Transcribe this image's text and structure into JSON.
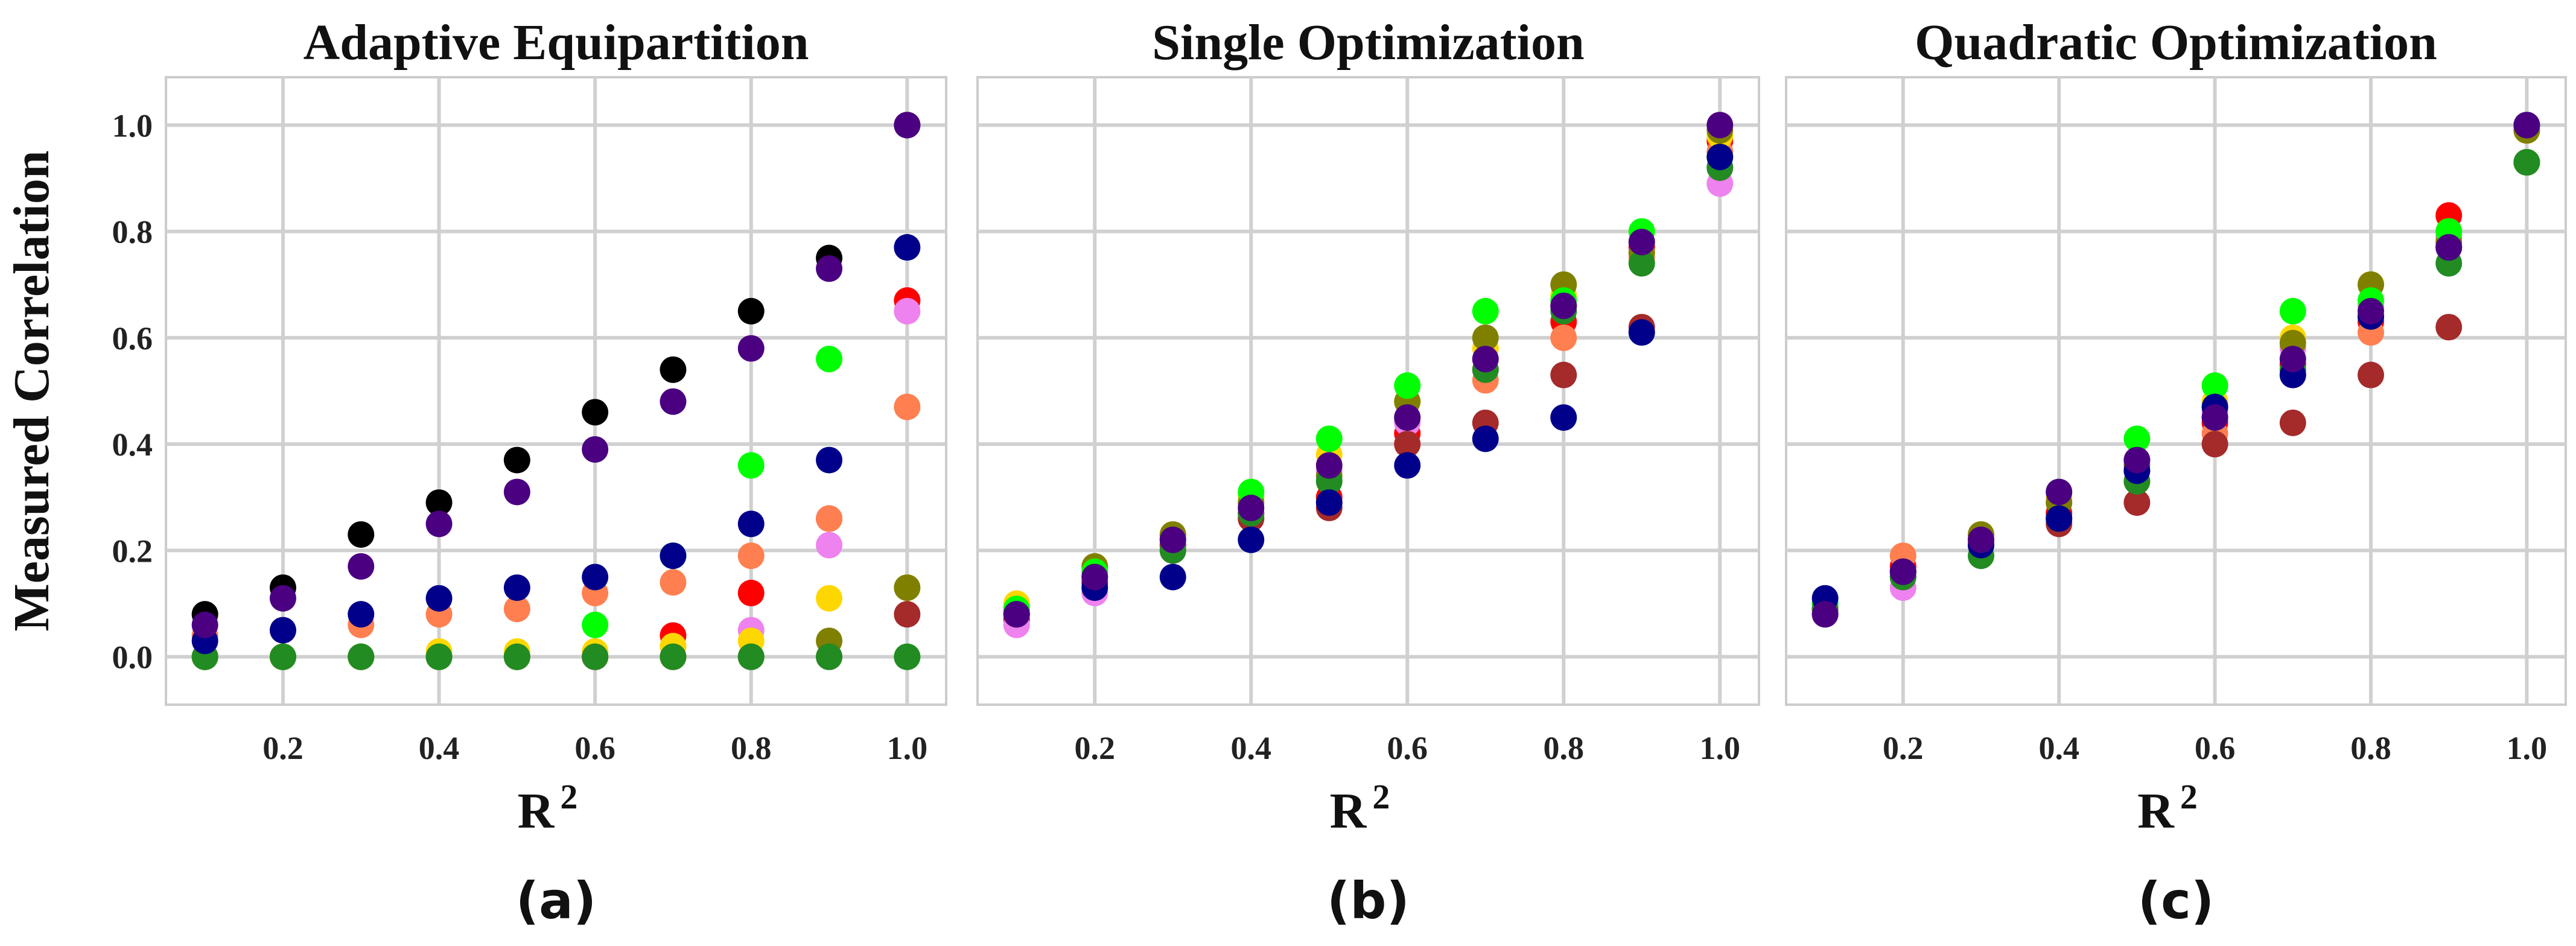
{
  "figure": {
    "captions": [
      "(a)",
      "(b)",
      "(c)"
    ]
  },
  "chart_data": [
    {
      "type": "scatter",
      "title": "Adaptive Equipartition",
      "xlabel": "R",
      "xlabel_superscript": "2",
      "ylabel": "Measured Correlation",
      "xlim": [
        0.05,
        1.05
      ],
      "ylim": [
        -0.09,
        1.09
      ],
      "xticks": [
        0.2,
        0.4,
        0.6,
        0.8,
        1.0
      ],
      "xtick_labels": [
        "0.2",
        "0.4",
        "0.6",
        "0.8",
        "1.0"
      ],
      "yticks": [
        0.0,
        0.2,
        0.4,
        0.6,
        0.8,
        1.0
      ],
      "ytick_labels": [
        "0.0",
        "0.2",
        "0.4",
        "0.6",
        "0.8",
        "1.0"
      ],
      "grid": true,
      "series": [
        {
          "color": "#ff0000",
          "x": [
            0.1,
            0.2,
            0.3,
            0.4,
            0.5,
            0.6,
            0.7,
            0.8,
            0.9,
            1.0
          ],
          "y": [
            0,
            0,
            0,
            0,
            0,
            0,
            0.04,
            0.12,
            0.26,
            0.67
          ]
        },
        {
          "color": "#ff7f50",
          "x": [
            0.1,
            0.2,
            0.3,
            0.4,
            0.5,
            0.6,
            0.7,
            0.8,
            0.9,
            1.0
          ],
          "y": [
            0.04,
            0.05,
            0.06,
            0.08,
            0.09,
            0.12,
            0.14,
            0.19,
            0.26,
            0.47
          ]
        },
        {
          "color": "#ee82ee",
          "x": [
            0.1,
            0.2,
            0.3,
            0.4,
            0.5,
            0.6,
            0.7,
            0.8,
            0.9,
            1.0
          ],
          "y": [
            0,
            0,
            0,
            0,
            0,
            0,
            0.02,
            0.05,
            0.21,
            0.65
          ]
        },
        {
          "color": "#ffd700",
          "x": [
            0.1,
            0.2,
            0.3,
            0.4,
            0.5,
            0.6,
            0.7,
            0.8,
            0.9,
            1.0
          ],
          "y": [
            0,
            0,
            0,
            0.01,
            0.01,
            0.01,
            0.02,
            0.03,
            0.11,
            0.13
          ]
        },
        {
          "color": "#808000",
          "x": [
            0.1,
            0.2,
            0.3,
            0.4,
            0.5,
            0.6,
            0.7,
            0.8,
            0.9,
            1.0
          ],
          "y": [
            0,
            0,
            0,
            0,
            0,
            0,
            0,
            0,
            0.03,
            0.13
          ]
        },
        {
          "color": "#a52a2a",
          "x": [
            0.1,
            0.2,
            0.3,
            0.4,
            0.5,
            0.6,
            0.7,
            0.8,
            0.9,
            1.0
          ],
          "y": [
            0,
            0,
            0,
            0,
            0,
            0,
            0,
            0,
            0,
            0.08
          ]
        },
        {
          "color": "#00ff00",
          "x": [
            0.1,
            0.2,
            0.3,
            0.4,
            0.5,
            0.6,
            0.7,
            0.8,
            0.9,
            1.0
          ],
          "y": [
            0,
            0,
            0,
            0,
            0,
            0.06,
            0.19,
            0.36,
            0.56,
            0
          ]
        },
        {
          "color": "#228b22",
          "x": [
            0.1,
            0.2,
            0.3,
            0.4,
            0.5,
            0.6,
            0.7,
            0.8,
            0.9,
            1.0
          ],
          "y": [
            0,
            0,
            0,
            0,
            0,
            0,
            0,
            0,
            0,
            0
          ]
        },
        {
          "color": "#000000",
          "x": [
            0.1,
            0.2,
            0.3,
            0.4,
            0.5,
            0.6,
            0.7,
            0.8,
            0.9,
            1.0
          ],
          "y": [
            0.08,
            0.13,
            0.23,
            0.29,
            0.37,
            0.46,
            0.54,
            0.65,
            0.75,
            1.0
          ]
        },
        {
          "color": "#00008b",
          "x": [
            0.1,
            0.2,
            0.3,
            0.4,
            0.5,
            0.6,
            0.7,
            0.8,
            0.9,
            1.0
          ],
          "y": [
            0.03,
            0.05,
            0.08,
            0.11,
            0.13,
            0.15,
            0.19,
            0.25,
            0.37,
            0.77
          ]
        },
        {
          "color": "#4b0082",
          "x": [
            0.1,
            0.2,
            0.3,
            0.4,
            0.5,
            0.6,
            0.7,
            0.8,
            0.9,
            1.0
          ],
          "y": [
            0.06,
            0.11,
            0.17,
            0.25,
            0.31,
            0.39,
            0.48,
            0.58,
            0.73,
            1.0
          ]
        }
      ]
    },
    {
      "type": "scatter",
      "title": "Single Optimization",
      "xlabel": "R",
      "xlabel_superscript": "2",
      "ylabel": "",
      "xlim": [
        0.05,
        1.05
      ],
      "ylim": [
        -0.09,
        1.09
      ],
      "xticks": [
        0.2,
        0.4,
        0.6,
        0.8,
        1.0
      ],
      "xtick_labels": [
        "0.2",
        "0.4",
        "0.6",
        "0.8",
        "1.0"
      ],
      "yticks": [
        0.0,
        0.2,
        0.4,
        0.6,
        0.8,
        1.0
      ],
      "ytick_labels": [],
      "grid": true,
      "series": [
        {
          "color": "#ff0000",
          "x": [
            0.1,
            0.2,
            0.3,
            0.4,
            0.5,
            0.6,
            0.7,
            0.8,
            0.9,
            1.0
          ],
          "y": [
            0.07,
            0.14,
            0.2,
            0.27,
            0.3,
            0.42,
            0.54,
            0.63,
            0.77,
            0.97
          ]
        },
        {
          "color": "#ff7f50",
          "x": [
            0.1,
            0.2,
            0.3,
            0.4,
            0.5,
            0.6,
            0.7,
            0.8,
            0.9,
            1.0
          ],
          "y": [
            0.08,
            0.15,
            0.21,
            0.26,
            0.29,
            0.4,
            0.52,
            0.6,
            0.75,
            0.95
          ]
        },
        {
          "color": "#ee82ee",
          "x": [
            0.1,
            0.2,
            0.3,
            0.4,
            0.5,
            0.6,
            0.7,
            0.8,
            0.9,
            1.0
          ],
          "y": [
            0.06,
            0.12,
            0.2,
            0.27,
            0.35,
            0.44,
            0.56,
            0.66,
            0.76,
            0.89
          ]
        },
        {
          "color": "#ffd700",
          "x": [
            0.1,
            0.2,
            0.3,
            0.4,
            0.5,
            0.6,
            0.7,
            0.8,
            0.9,
            1.0
          ],
          "y": [
            0.1,
            0.17,
            0.23,
            0.3,
            0.38,
            0.48,
            0.58,
            0.68,
            0.78,
            0.98
          ]
        },
        {
          "color": "#808000",
          "x": [
            0.1,
            0.2,
            0.3,
            0.4,
            0.5,
            0.6,
            0.7,
            0.8,
            0.9,
            1.0
          ],
          "y": [
            0.09,
            0.17,
            0.23,
            0.29,
            0.34,
            0.48,
            0.6,
            0.7,
            0.76,
            0.99
          ]
        },
        {
          "color": "#a52a2a",
          "x": [
            0.1,
            0.2,
            0.3,
            0.4,
            0.5,
            0.6,
            0.7,
            0.8,
            0.9,
            1.0
          ],
          "y": [
            0.08,
            0.14,
            0.21,
            0.26,
            0.28,
            0.4,
            0.44,
            0.53,
            0.62,
            0.92
          ]
        },
        {
          "color": "#00ff00",
          "x": [
            0.1,
            0.2,
            0.3,
            0.4,
            0.5,
            0.6,
            0.7,
            0.8,
            0.9,
            1.0
          ],
          "y": [
            0.09,
            0.16,
            0.22,
            0.31,
            0.41,
            0.51,
            0.65,
            0.67,
            0.8,
            0.94
          ]
        },
        {
          "color": "#228b22",
          "x": [
            0.1,
            0.2,
            0.3,
            0.4,
            0.5,
            0.6,
            0.7,
            0.8,
            0.9,
            1.0
          ],
          "y": [
            0.08,
            0.15,
            0.2,
            0.27,
            0.33,
            0.45,
            0.54,
            0.65,
            0.74,
            0.92
          ]
        },
        {
          "color": "#00008b",
          "x": [
            0.1,
            0.2,
            0.3,
            0.4,
            0.5,
            0.6,
            0.7,
            0.8,
            0.9,
            1.0
          ],
          "y": [
            0.08,
            0.13,
            0.15,
            0.22,
            0.29,
            0.36,
            0.41,
            0.45,
            0.61,
            0.94
          ]
        },
        {
          "color": "#4b0082",
          "x": [
            0.1,
            0.2,
            0.3,
            0.4,
            0.5,
            0.6,
            0.7,
            0.8,
            0.9,
            1.0
          ],
          "y": [
            0.08,
            0.15,
            0.22,
            0.28,
            0.36,
            0.45,
            0.56,
            0.66,
            0.78,
            1.0
          ]
        }
      ]
    },
    {
      "type": "scatter",
      "title": "Quadratic Optimization",
      "xlabel": "R",
      "xlabel_superscript": "2",
      "ylabel": "",
      "xlim": [
        0.05,
        1.05
      ],
      "ylim": [
        -0.09,
        1.09
      ],
      "xticks": [
        0.2,
        0.4,
        0.6,
        0.8,
        1.0
      ],
      "xtick_labels": [
        "0.2",
        "0.4",
        "0.6",
        "0.8",
        "1.0"
      ],
      "yticks": [
        0.0,
        0.2,
        0.4,
        0.6,
        0.8,
        1.0
      ],
      "ytick_labels": [],
      "grid": true,
      "series": [
        {
          "color": "#ff0000",
          "x": [
            0.1,
            0.2,
            0.3,
            0.4,
            0.5,
            0.6,
            0.7,
            0.8,
            0.9,
            1.0
          ],
          "y": [
            0.09,
            0.17,
            0.22,
            0.27,
            0.35,
            0.44,
            0.55,
            0.63,
            0.83,
            0.93
          ]
        },
        {
          "color": "#ff7f50",
          "x": [
            0.1,
            0.2,
            0.3,
            0.4,
            0.5,
            0.6,
            0.7,
            0.8,
            0.9,
            1.0
          ],
          "y": [
            0.09,
            0.19,
            0.22,
            0.26,
            0.33,
            0.42,
            0.53,
            0.61,
            0.8,
            0.93
          ]
        },
        {
          "color": "#ee82ee",
          "x": [
            0.1,
            0.2,
            0.3,
            0.4,
            0.5,
            0.6,
            0.7,
            0.8,
            0.9,
            1.0
          ],
          "y": [
            0.09,
            0.13,
            0.21,
            0.29,
            0.37,
            0.46,
            0.58,
            0.66,
            0.79,
            0.99
          ]
        },
        {
          "color": "#ffd700",
          "x": [
            0.1,
            0.2,
            0.3,
            0.4,
            0.5,
            0.6,
            0.7,
            0.8,
            0.9,
            1.0
          ],
          "y": [
            0.09,
            0.16,
            0.23,
            0.3,
            0.37,
            0.48,
            0.6,
            0.7,
            0.8,
            0.99
          ]
        },
        {
          "color": "#808000",
          "x": [
            0.1,
            0.2,
            0.3,
            0.4,
            0.5,
            0.6,
            0.7,
            0.8,
            0.9,
            1.0
          ],
          "y": [
            0.09,
            0.16,
            0.23,
            0.29,
            0.36,
            0.47,
            0.59,
            0.7,
            0.78,
            0.99
          ]
        },
        {
          "color": "#a52a2a",
          "x": [
            0.1,
            0.2,
            0.3,
            0.4,
            0.5,
            0.6,
            0.7,
            0.8,
            0.9,
            1.0
          ],
          "y": [
            0.08,
            0.15,
            0.21,
            0.25,
            0.29,
            0.4,
            0.44,
            0.53,
            0.62,
            0.93
          ]
        },
        {
          "color": "#00ff00",
          "x": [
            0.1,
            0.2,
            0.3,
            0.4,
            0.5,
            0.6,
            0.7,
            0.8,
            0.9,
            1.0
          ],
          "y": [
            0.1,
            0.16,
            0.21,
            0.31,
            0.41,
            0.51,
            0.65,
            0.67,
            0.8,
            0.93
          ]
        },
        {
          "color": "#228b22",
          "x": [
            0.1,
            0.2,
            0.3,
            0.4,
            0.5,
            0.6,
            0.7,
            0.8,
            0.9,
            1.0
          ],
          "y": [
            0.09,
            0.15,
            0.19,
            0.26,
            0.33,
            0.45,
            0.54,
            0.64,
            0.74,
            0.93
          ]
        },
        {
          "color": "#00008b",
          "x": [
            0.1,
            0.2,
            0.3,
            0.4,
            0.5,
            0.6,
            0.7,
            0.8,
            0.9,
            1.0
          ],
          "y": [
            0.11,
            0.16,
            0.21,
            0.26,
            0.35,
            0.47,
            0.53,
            0.64,
            0.77,
            1.0
          ]
        },
        {
          "color": "#4b0082",
          "x": [
            0.1,
            0.2,
            0.3,
            0.4,
            0.5,
            0.6,
            0.7,
            0.8,
            0.9,
            1.0
          ],
          "y": [
            0.08,
            0.16,
            0.22,
            0.31,
            0.37,
            0.45,
            0.56,
            0.65,
            0.77,
            1.0
          ]
        }
      ]
    }
  ]
}
